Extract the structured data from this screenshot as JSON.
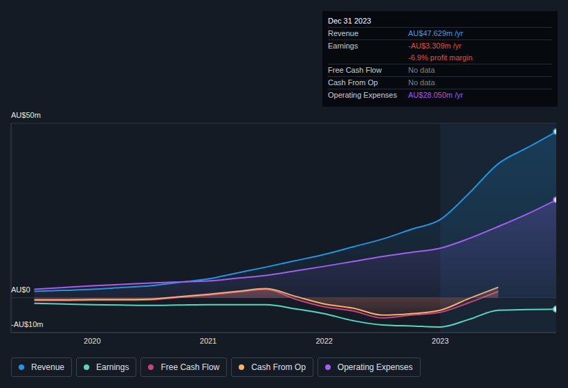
{
  "chart_data": {
    "type": "line",
    "x": [
      2019.5,
      2019.75,
      2020,
      2020.25,
      2020.5,
      2020.75,
      2021,
      2021.25,
      2021.5,
      2021.75,
      2022,
      2022.25,
      2022.5,
      2022.75,
      2023,
      2023.25,
      2023.5,
      2023.75,
      2024
    ],
    "xlim": [
      2019.3,
      2024
    ],
    "xticks": [
      2020,
      2021,
      2022,
      2023
    ],
    "ylim": [
      -10,
      50
    ],
    "yticks": [
      {
        "value": -10,
        "label": "-AU$10m"
      },
      {
        "value": 0,
        "label": "AU$0"
      },
      {
        "value": 50,
        "label": "AU$50m"
      }
    ],
    "grid": true,
    "legend": "bottom",
    "series": [
      {
        "name": "Revenue",
        "color": "#2394df",
        "type": "area",
        "values": [
          1.8,
          2.1,
          2.4,
          2.9,
          3.4,
          4.4,
          5.4,
          7.1,
          8.8,
          10.6,
          12.4,
          14.6,
          16.8,
          19.6,
          22.4,
          30,
          38.4,
          43,
          47.6
        ]
      },
      {
        "name": "Earnings",
        "color": "#58d6c4",
        "type": "line",
        "values": [
          -1.6,
          -1.8,
          -2,
          -2.1,
          -2.2,
          -2.1,
          -2,
          -2,
          -2,
          -3.2,
          -4.6,
          -6.6,
          -7.8,
          -8.1,
          -8.4,
          -6.2,
          -3.6,
          -3.4,
          -3.3
        ]
      },
      {
        "name": "Free Cash Flow",
        "color": "#c8457c",
        "type": "area",
        "values": [
          -0.8,
          -0.8,
          -0.7,
          -0.7,
          -0.6,
          0.1,
          0.8,
          1.6,
          2.4,
          -0.4,
          -2.6,
          -3.8,
          -5.8,
          -5,
          -4.2,
          -1.4,
          1.8,
          null,
          null
        ]
      },
      {
        "name": "Cash From Op",
        "color": "#f2b36c",
        "type": "area",
        "values": [
          -0.6,
          -0.6,
          -0.5,
          -0.5,
          -0.4,
          0.3,
          1,
          1.8,
          2.6,
          0.4,
          -1.8,
          -3,
          -5,
          -4.6,
          -3.6,
          -0.2,
          3,
          null,
          null
        ]
      },
      {
        "name": "Operating Expenses",
        "color": "#a35ff0",
        "type": "area",
        "values": [
          2.4,
          2.9,
          3.4,
          3.8,
          4.2,
          4.5,
          4.8,
          5.6,
          6.4,
          7.7,
          9,
          10.4,
          11.8,
          13,
          14.2,
          17,
          20.4,
          24,
          28.05
        ]
      }
    ],
    "annotations": {
      "title": "Dec 31 2023",
      "rows": [
        {
          "label": "Revenue",
          "value": "AU$47.629m /yr",
          "color": "#3d9be9"
        },
        {
          "label": "Earnings",
          "value": "-AU$3.309m /yr",
          "color": "#e64a3c"
        },
        {
          "value": "-6.9% profit margin",
          "color": "#e64a3c"
        },
        {
          "label": "Free Cash Flow",
          "value": "No data",
          "color": "#7d838c"
        },
        {
          "label": "Cash From Op",
          "value": "No data",
          "color": "#7d838c"
        },
        {
          "label": "Operating Expenses",
          "value": "AU$28.050m /yr",
          "color": "#a855f7"
        }
      ]
    }
  }
}
